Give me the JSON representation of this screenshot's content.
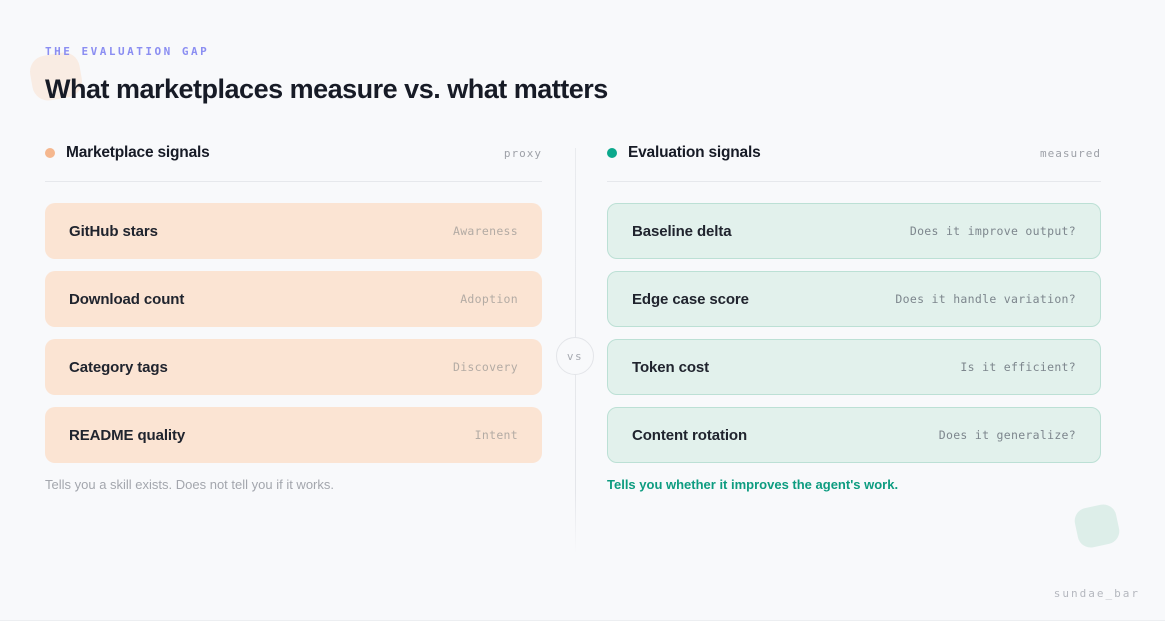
{
  "page": {
    "eyebrow": "THE EVALUATION GAP",
    "title": "What marketplaces measure vs. what matters",
    "vs_label": "vs",
    "watermark": "sundae_bar",
    "colors": {
      "background": "#f8f9fb",
      "eyebrow": "#8b8ef2",
      "left_accent": "#f5b78e",
      "right_accent": "#0ba88c",
      "left_card_bg": "#fbe4d3",
      "right_card_bg": "#e2f1ec",
      "right_card_border": "#bce0d5",
      "right_footnote": "#0d9c80"
    }
  },
  "left": {
    "title": "Marketplace signals",
    "tag": "proxy",
    "cards": [
      {
        "label": "GitHub stars",
        "meta": "Awareness"
      },
      {
        "label": "Download count",
        "meta": "Adoption"
      },
      {
        "label": "Category tags",
        "meta": "Discovery"
      },
      {
        "label": "README quality",
        "meta": "Intent"
      }
    ],
    "footnote": "Tells you a skill exists. Does not tell you if it works."
  },
  "right": {
    "title": "Evaluation signals",
    "tag": "measured",
    "cards": [
      {
        "label": "Baseline delta",
        "meta": "Does it improve output?"
      },
      {
        "label": "Edge case score",
        "meta": "Does it handle variation?"
      },
      {
        "label": "Token cost",
        "meta": "Is it efficient?"
      },
      {
        "label": "Content rotation",
        "meta": "Does it generalize?"
      }
    ],
    "footnote": "Tells you whether it improves the agent's work."
  }
}
